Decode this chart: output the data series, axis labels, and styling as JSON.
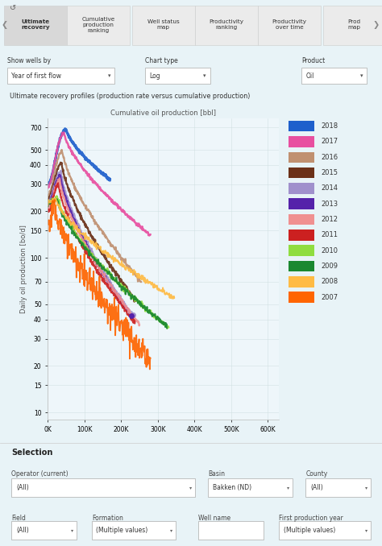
{
  "title": "Ultimate recovery profiles (production rate versus cumulative production)",
  "xlabel": "Cumulative oil production [bbl]",
  "ylabel": "Daily oil production [bo/d]",
  "bg_color": "#e8f3f7",
  "plot_bg": "#eef6fa",
  "nav_items": [
    "Ultimate\nrecovery",
    "Cumulative\nproduction\nranking",
    "Well status\nmap",
    "Productivity\nranking",
    "Productivity\nover time",
    "Prod\nmap"
  ],
  "show_wells_label": "Show wells by",
  "show_wells_value": "Year of first flow",
  "chart_type_label": "Chart type",
  "chart_type_value": "Log",
  "product_label": "Product",
  "product_value": "Oil",
  "selection_label": "Selection",
  "operator_label": "Operator (current)",
  "operator_value": "(All)",
  "basin_label": "Basin",
  "basin_value": "Bakken (ND)",
  "county_label": "County",
  "county_value": "(All)",
  "field_label": "Field",
  "field_value": "(All)",
  "formation_label": "Formation",
  "formation_value": "(Multiple values)",
  "wellname_label": "Well name",
  "wellname_value": "",
  "firstprod_label": "First production year",
  "firstprod_value": "(Multiple values)",
  "legend_years": [
    "2018",
    "2017",
    "2016",
    "2015",
    "2014",
    "2013",
    "2012",
    "2011",
    "2010",
    "2009",
    "2008",
    "2007"
  ],
  "legend_colors": [
    "#1e5fcc",
    "#e84fa0",
    "#c09070",
    "#6b3018",
    "#a090cc",
    "#5522aa",
    "#f09090",
    "#cc2020",
    "#90dd40",
    "#1a8830",
    "#ffbb44",
    "#ff6500"
  ],
  "yticks": [
    10,
    15,
    20,
    30,
    40,
    50,
    70,
    100,
    150,
    200,
    300,
    400,
    500,
    700
  ],
  "xticks": [
    0,
    100000,
    200000,
    300000,
    400000,
    500000,
    600000
  ],
  "xlabels": [
    "0K",
    "100K",
    "200K",
    "300K",
    "400K",
    "500K",
    "600K"
  ],
  "xmax": 630000,
  "ymin": 9,
  "ymax": 800
}
